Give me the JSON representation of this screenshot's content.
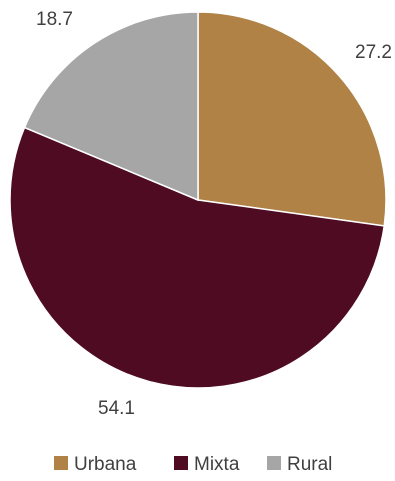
{
  "chart_data": {
    "type": "pie",
    "categories": [
      "Urbana",
      "Mixta",
      "Rural"
    ],
    "values": [
      27.2,
      54.1,
      18.7
    ],
    "colors": [
      "#B08246",
      "#4E0B22",
      "#A6A6A6"
    ],
    "data_labels": [
      "27.2",
      "54.1",
      "18.7"
    ],
    "legend": {
      "position": "bottom",
      "entries": [
        "Urbana",
        "Mixta",
        "Rural"
      ]
    },
    "start_angle": "12 o'clock",
    "direction": "clockwise"
  }
}
